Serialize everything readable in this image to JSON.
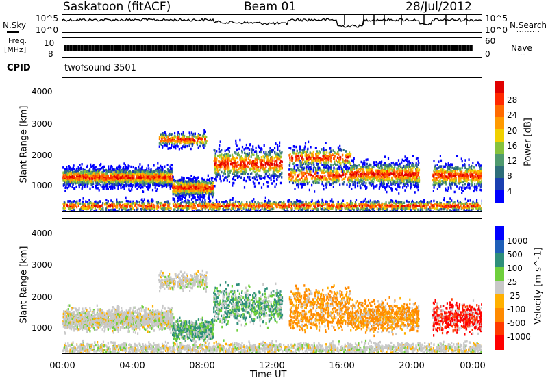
{
  "header": {
    "station": "Saskatoon (fitACF)",
    "beam": "Beam 01",
    "date": "28/Jul/2012"
  },
  "top_panel": {
    "nsky_label": "N.Sky",
    "nsearch_label": "N.Search",
    "nsearch_dots": ".........",
    "y_hi": "10^5",
    "y_lo": "10^0",
    "freq_label_1": "Freq.",
    "freq_label_2": "[MHz]",
    "freq_ticks": [
      "10",
      "8"
    ],
    "nave_label": "Nave",
    "nave_dots": "....",
    "nave_ticks": [
      "60",
      "0"
    ],
    "cpid_label": "CPID",
    "cpid_value": "twofsound 3501"
  },
  "colors": {
    "power": [
      "#0000ff",
      "#1a3fb0",
      "#2e6e7a",
      "#4f9a6e",
      "#86c23c",
      "#f0d000",
      "#ff9a00",
      "#ff6a00",
      "#ff2800",
      "#e00000"
    ],
    "velocity": [
      "#0000ff",
      "#1f5fb8",
      "#2e8f7a",
      "#6fcf3c",
      "#c8c8c8",
      "#ffb000",
      "#ff8a00",
      "#ff3a00",
      "#ff0000"
    ]
  },
  "chart_data": [
    {
      "type": "heatmap",
      "name": "power",
      "ylabel": "Slant Range [km]",
      "yticks": [
        "1000",
        "2000",
        "3000",
        "4000"
      ],
      "ylim": [
        200,
        4600
      ],
      "colorbar_label": "Power [dB]",
      "colorbar_ticks": [
        "4",
        "8",
        "12",
        "16",
        "20",
        "24",
        "28"
      ]
    },
    {
      "type": "heatmap",
      "name": "velocity",
      "ylabel": "Slant Range [km]",
      "yticks": [
        "1000",
        "2000",
        "3000",
        "4000"
      ],
      "ylim": [
        200,
        4600
      ],
      "colorbar_label": "Velocity [m s^-1]",
      "colorbar_ticks": [
        "1000",
        "500",
        "100",
        "25",
        "-25",
        "-100",
        "-500",
        "-1000"
      ]
    }
  ],
  "xaxis": {
    "label": "Time UT",
    "ticks": [
      "00:00",
      "04:00",
      "08:00",
      "12:00",
      "16:00",
      "20:00",
      "00:00"
    ]
  }
}
